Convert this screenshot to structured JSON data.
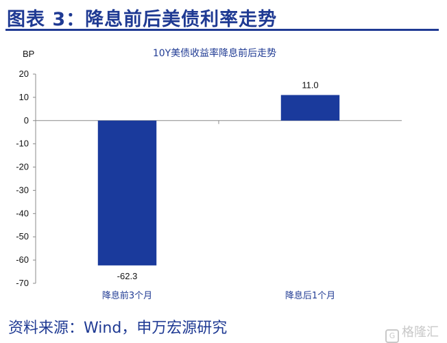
{
  "header": {
    "title": "图表 3：降息前后美债利率走势"
  },
  "footer": {
    "source": "资料来源：Wind，申万宏源研究",
    "watermark": "格隆汇"
  },
  "chart_data": {
    "type": "bar",
    "title": "10Y美债收益率降息前后走势",
    "ylabel": "BP",
    "xlabel": "",
    "ylim": [
      -70,
      20
    ],
    "yticks": [
      20,
      10,
      0,
      -10,
      -20,
      -30,
      -40,
      -50,
      -60,
      -70
    ],
    "categories": [
      "降息前3个月",
      "降息后1个月"
    ],
    "values": [
      -62.3,
      11.0
    ],
    "data_labels": [
      "-62.3",
      "11.0"
    ],
    "bar_color": "#1a3a9c",
    "grid": false
  }
}
